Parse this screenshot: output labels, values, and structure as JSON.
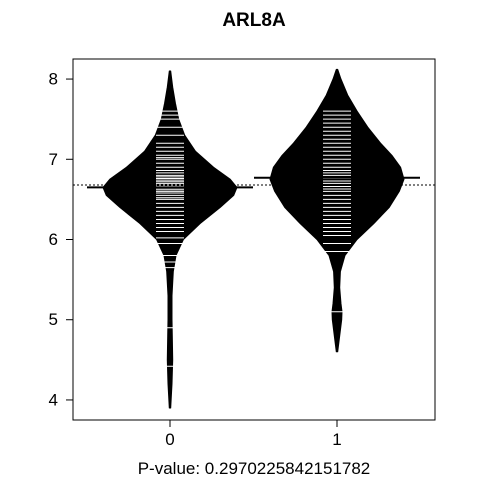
{
  "chart_data": {
    "type": "beanplot",
    "title": "ARL8A",
    "xlabel": "P-value: 0.2970225842151782",
    "ylabel": "",
    "categories": [
      "0",
      "1"
    ],
    "ylim": [
      3.75,
      8.25
    ],
    "yticks": [
      4,
      5,
      6,
      7,
      8
    ],
    "overall_mean": 6.68,
    "series": [
      {
        "category": "0",
        "group_mean": 6.65,
        "density": [
          [
            3.9,
            0.01
          ],
          [
            4.2,
            0.03
          ],
          [
            4.5,
            0.04
          ],
          [
            4.8,
            0.035
          ],
          [
            5.0,
            0.03
          ],
          [
            5.3,
            0.03
          ],
          [
            5.6,
            0.05
          ],
          [
            5.8,
            0.09
          ],
          [
            6.0,
            0.2
          ],
          [
            6.2,
            0.45
          ],
          [
            6.4,
            0.75
          ],
          [
            6.55,
            0.95
          ],
          [
            6.65,
            1.0
          ],
          [
            6.75,
            0.9
          ],
          [
            6.9,
            0.65
          ],
          [
            7.1,
            0.38
          ],
          [
            7.3,
            0.22
          ],
          [
            7.5,
            0.13
          ],
          [
            7.7,
            0.08
          ],
          [
            7.9,
            0.04
          ],
          [
            8.1,
            0.01
          ]
        ],
        "observations": [
          4.42,
          4.9,
          5.65,
          5.72,
          5.8,
          5.95,
          6.02,
          6.1,
          6.15,
          6.2,
          6.25,
          6.3,
          6.35,
          6.4,
          6.45,
          6.5,
          6.52,
          6.55,
          6.58,
          6.6,
          6.62,
          6.64,
          6.66,
          6.68,
          6.7,
          6.72,
          6.74,
          6.76,
          6.78,
          6.8,
          6.83,
          6.86,
          6.9,
          6.95,
          7.0,
          7.02,
          7.05,
          7.1,
          7.15,
          7.2,
          7.3,
          7.4,
          7.5,
          7.55,
          7.6
        ]
      },
      {
        "category": "1",
        "group_mean": 6.77,
        "density": [
          [
            4.6,
            0.01
          ],
          [
            4.8,
            0.04
          ],
          [
            5.0,
            0.07
          ],
          [
            5.1,
            0.075
          ],
          [
            5.2,
            0.06
          ],
          [
            5.4,
            0.04
          ],
          [
            5.6,
            0.05
          ],
          [
            5.8,
            0.12
          ],
          [
            6.0,
            0.3
          ],
          [
            6.2,
            0.55
          ],
          [
            6.4,
            0.78
          ],
          [
            6.6,
            0.93
          ],
          [
            6.75,
            1.0
          ],
          [
            6.9,
            0.95
          ],
          [
            7.05,
            0.82
          ],
          [
            7.2,
            0.65
          ],
          [
            7.4,
            0.46
          ],
          [
            7.6,
            0.3
          ],
          [
            7.8,
            0.16
          ],
          [
            8.0,
            0.06
          ],
          [
            8.12,
            0.01
          ]
        ],
        "observations": [
          5.1,
          5.85,
          5.95,
          6.05,
          6.1,
          6.15,
          6.2,
          6.25,
          6.3,
          6.35,
          6.4,
          6.45,
          6.5,
          6.55,
          6.6,
          6.63,
          6.66,
          6.7,
          6.73,
          6.76,
          6.8,
          6.83,
          6.86,
          6.9,
          6.95,
          7.0,
          7.05,
          7.1,
          7.15,
          7.2,
          7.25,
          7.3,
          7.35,
          7.4,
          7.45,
          7.5,
          7.55,
          7.6
        ]
      }
    ]
  }
}
